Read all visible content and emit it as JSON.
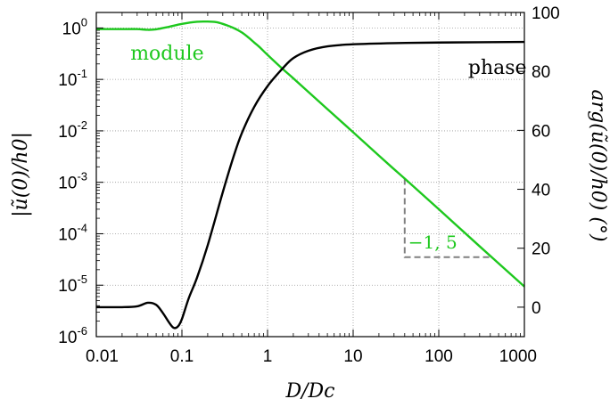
{
  "chart_data": {
    "type": "line",
    "title": "",
    "xlabel": "D/Dc",
    "ylabel_left": "|ũ(0)/h0|",
    "ylabel_right": "arg(ũ(0)/h0) (°)",
    "x_scale": "log",
    "xlim": [
      0.01,
      1000
    ],
    "y_left_scale": "log",
    "y_left_lim": [
      1e-06,
      2
    ],
    "y_right_lim": [
      -10,
      100
    ],
    "grid": true,
    "x_ticks": [
      {
        "value": 0.01,
        "label": "0.01"
      },
      {
        "value": 0.1,
        "label": "0.1"
      },
      {
        "value": 1,
        "label": "1"
      },
      {
        "value": 10,
        "label": "10"
      },
      {
        "value": 100,
        "label": "100"
      },
      {
        "value": 1000,
        "label": "1000"
      }
    ],
    "y_left_ticks": [
      {
        "value": 1,
        "base": "10",
        "exp": "0"
      },
      {
        "value": 0.1,
        "base": "10",
        "exp": "-1"
      },
      {
        "value": 0.01,
        "base": "10",
        "exp": "-2"
      },
      {
        "value": 0.001,
        "base": "10",
        "exp": "-3"
      },
      {
        "value": 0.0001,
        "base": "10",
        "exp": "-4"
      },
      {
        "value": 1e-05,
        "base": "10",
        "exp": "-5"
      },
      {
        "value": 1e-06,
        "base": "10",
        "exp": "-6"
      }
    ],
    "y_right_ticks": [
      {
        "value": 0,
        "label": "0"
      },
      {
        "value": 20,
        "label": "20"
      },
      {
        "value": 40,
        "label": "40"
      },
      {
        "value": 60,
        "label": "60"
      },
      {
        "value": 80,
        "label": "80"
      },
      {
        "value": 100,
        "label": "100"
      }
    ],
    "series": [
      {
        "name": "module",
        "axis": "left",
        "color": "#1ec81e",
        "label_position": {
          "x": 0.025,
          "y": 0.25
        },
        "points": [
          [
            0.01,
            0.95
          ],
          [
            0.02,
            0.95
          ],
          [
            0.03,
            0.95
          ],
          [
            0.04,
            0.92
          ],
          [
            0.05,
            0.94
          ],
          [
            0.07,
            1.05
          ],
          [
            0.1,
            1.2
          ],
          [
            0.15,
            1.32
          ],
          [
            0.2,
            1.33
          ],
          [
            0.25,
            1.3
          ],
          [
            0.3,
            1.2
          ],
          [
            0.4,
            1.0
          ],
          [
            0.5,
            0.82
          ],
          [
            0.6,
            0.65
          ],
          [
            0.7,
            0.52
          ],
          [
            0.8,
            0.43
          ],
          [
            1,
            0.3
          ],
          [
            1.5,
            0.16
          ],
          [
            2,
            0.105
          ],
          [
            3,
            0.057
          ],
          [
            5,
            0.0265
          ],
          [
            10,
            0.0094
          ],
          [
            20,
            0.0033
          ],
          [
            30,
            0.0018
          ],
          [
            40,
            0.00118
          ],
          [
            100,
            0.0003
          ],
          [
            300,
            5.7e-05
          ],
          [
            1000,
            9.4e-06
          ]
        ]
      },
      {
        "name": "phase",
        "axis": "right",
        "color": "#000000",
        "label_position": {
          "x": 220,
          "y": 0.1
        },
        "points": [
          [
            0.01,
            0
          ],
          [
            0.02,
            0
          ],
          [
            0.03,
            0.3
          ],
          [
            0.04,
            1.5
          ],
          [
            0.05,
            0.8
          ],
          [
            0.06,
            -2
          ],
          [
            0.07,
            -5
          ],
          [
            0.08,
            -7
          ],
          [
            0.09,
            -6.5
          ],
          [
            0.1,
            -4
          ],
          [
            0.12,
            3
          ],
          [
            0.15,
            10
          ],
          [
            0.2,
            21
          ],
          [
            0.3,
            39
          ],
          [
            0.4,
            51
          ],
          [
            0.5,
            59
          ],
          [
            0.7,
            68
          ],
          [
            1,
            75
          ],
          [
            1.5,
            81
          ],
          [
            2,
            84.5
          ],
          [
            3,
            87
          ],
          [
            5,
            88.5
          ],
          [
            10,
            89.2
          ],
          [
            30,
            89.6
          ],
          [
            100,
            89.8
          ],
          [
            1000,
            90
          ]
        ]
      }
    ],
    "annotations": [
      {
        "type": "slope-triangle",
        "label": "−1, 5",
        "label_color": "#1ec81e",
        "line_color": "#808080",
        "x1": 40,
        "x2": 420,
        "y_top": 0.00118,
        "y_bottom": 3.5e-05
      }
    ]
  }
}
